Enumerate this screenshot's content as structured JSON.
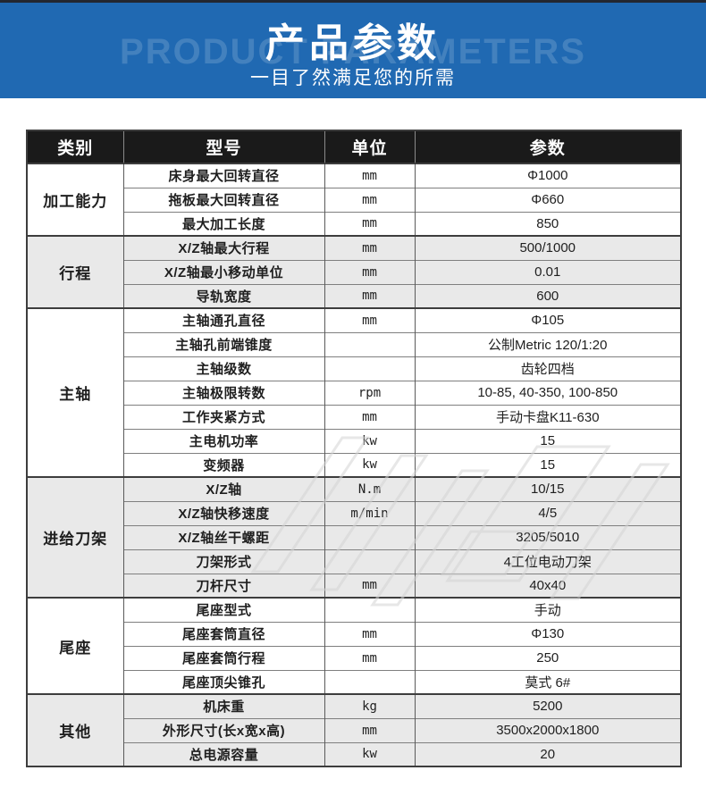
{
  "banner": {
    "title": "产品参数",
    "background_text": "PRODUCT PARAMETERS",
    "subtitle": "一目了然满足您的所需"
  },
  "colors": {
    "banner-bg": "#2069b2",
    "header-bg": "#1a1a1a",
    "band": "#e9e9e9"
  },
  "table": {
    "headers": [
      "类别",
      "型号",
      "单位",
      "参数"
    ],
    "groups": [
      {
        "category": "加工能力",
        "shaded": false,
        "rows": [
          {
            "model": "床身最大回转直径",
            "unit": "mm",
            "value": "Φ1000"
          },
          {
            "model": "拖板最大回转直径",
            "unit": "mm",
            "value": "Φ660"
          },
          {
            "model": "最大加工长度",
            "unit": "mm",
            "value": "850"
          }
        ]
      },
      {
        "category": "行程",
        "shaded": true,
        "rows": [
          {
            "model": "X/Z轴最大行程",
            "unit": "mm",
            "value": "500/1000"
          },
          {
            "model": "X/Z轴最小移动单位",
            "unit": "mm",
            "value": "0.01"
          },
          {
            "model": "导轨宽度",
            "unit": "mm",
            "value": "600"
          }
        ]
      },
      {
        "category": "主轴",
        "shaded": false,
        "rows": [
          {
            "model": "主轴通孔直径",
            "unit": "mm",
            "value": "Φ105"
          },
          {
            "model": "主轴孔前端锥度",
            "unit": "",
            "value": "公制Metric 120/1:20"
          },
          {
            "model": "主轴级数",
            "unit": "",
            "value": "齿轮四档"
          },
          {
            "model": "主轴极限转数",
            "unit": "rpm",
            "value": "10-85, 40-350, 100-850"
          },
          {
            "model": "工作夹紧方式",
            "unit": "mm",
            "value": "手动卡盘K11-630"
          },
          {
            "model": "主电机功率",
            "unit": "kw",
            "value": "15"
          },
          {
            "model": "变频器",
            "unit": "kw",
            "value": "15"
          }
        ]
      },
      {
        "category": "进给刀架",
        "shaded": true,
        "rows": [
          {
            "model": "X/Z轴",
            "unit": "N.m",
            "value": "10/15"
          },
          {
            "model": "X/Z轴快移速度",
            "unit": "m/min",
            "value": "4/5"
          },
          {
            "model": "X/Z轴丝干螺距",
            "unit": "",
            "value": "3205/5010"
          },
          {
            "model": "刀架形式",
            "unit": "",
            "value": "4工位电动刀架"
          },
          {
            "model": "刀杆尺寸",
            "unit": "mm",
            "value": "40x40"
          }
        ]
      },
      {
        "category": "尾座",
        "shaded": false,
        "rows": [
          {
            "model": "尾座型式",
            "unit": "",
            "value": "手动"
          },
          {
            "model": "尾座套筒直径",
            "unit": "mm",
            "value": "Φ130"
          },
          {
            "model": "尾座套筒行程",
            "unit": "mm",
            "value": "250"
          },
          {
            "model": "尾座顶尖锥孔",
            "unit": "",
            "value": "莫式 6#"
          }
        ]
      },
      {
        "category": "其他",
        "shaded": true,
        "rows": [
          {
            "model": "机床重",
            "unit": "kg",
            "value": "5200"
          },
          {
            "model": "外形尺寸(长x宽x高)",
            "unit": "mm",
            "value": "3500x2000x1800"
          },
          {
            "model": "总电源容量",
            "unit": "kw",
            "value": "20"
          }
        ]
      }
    ]
  }
}
